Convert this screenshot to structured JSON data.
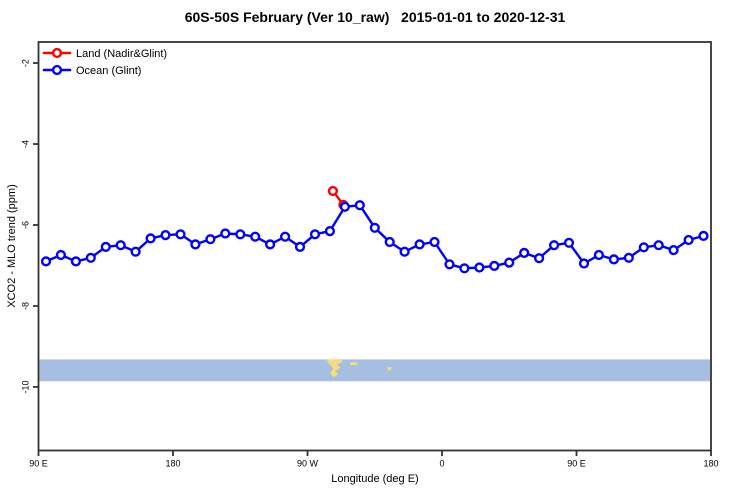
{
  "title": "60S-50S February (Ver 10_raw)   2015-01-01 to 2020-12-31",
  "legend": {
    "items": [
      {
        "label": "Land (Nadir&Glint)",
        "color": "#FF0000"
      },
      {
        "label": "Ocean (Glint)",
        "color": "#0000FF"
      }
    ]
  },
  "axes": {
    "x": {
      "label": "Longitude (deg E)",
      "ticks": [
        {
          "value": 90,
          "label": "90 E"
        },
        {
          "value": 180,
          "label": "180"
        },
        {
          "value": 270,
          "label": "90 W"
        },
        {
          "value": 360,
          "label": "0"
        },
        {
          "value": 450,
          "label": "90 E"
        },
        {
          "value": 540,
          "label": "180"
        }
      ]
    },
    "y": {
      "label": "XCO2 - MLO trend (ppm)",
      "ticks": [
        {
          "value": -2,
          "label": "-2"
        },
        {
          "value": -4,
          "label": "-4"
        },
        {
          "value": -6,
          "label": "-6"
        },
        {
          "value": -8,
          "label": "-8"
        },
        {
          "value": -10,
          "label": "-10"
        }
      ]
    }
  },
  "chart_data": {
    "type": "line",
    "title": "60S-50S February (Ver 10_raw)   2015-01-01 to 2020-12-31",
    "xlabel": "Longitude (deg E)",
    "ylabel": "XCO2 - MLO trend (ppm)",
    "xlim": [
      90,
      540
    ],
    "ylim": [
      -11.57,
      -1.48
    ],
    "grid": false,
    "legend_position": "top-left",
    "marker": "open-circle",
    "series": [
      {
        "name": "Land (Nadir&Glint)",
        "color": "#FF0000",
        "x": [
          287,
          294
        ],
        "values": [
          -5.16,
          -5.5
        ]
      },
      {
        "name": "Ocean (Glint)",
        "color": "#0000FF",
        "x": [
          95,
          105,
          115,
          125,
          135,
          145,
          155,
          165,
          175,
          185,
          195,
          205,
          215,
          225,
          235,
          245,
          255,
          265,
          275,
          285,
          295,
          305,
          315,
          325,
          335,
          345,
          355,
          365,
          375,
          385,
          395,
          405,
          415,
          425,
          435,
          445,
          455,
          465,
          475,
          485,
          495,
          505,
          515,
          525,
          535
        ],
        "values": [
          -6.9,
          -6.74,
          -6.9,
          -6.81,
          -6.54,
          -6.5,
          -6.66,
          -6.33,
          -6.25,
          -6.23,
          -6.48,
          -6.35,
          -6.21,
          -6.23,
          -6.29,
          -6.48,
          -6.29,
          -6.54,
          -6.23,
          -6.15,
          -5.55,
          -5.51,
          -6.07,
          -6.42,
          -6.66,
          -6.48,
          -6.42,
          -6.97,
          -7.07,
          -7.05,
          -7.01,
          -6.93,
          -6.69,
          -6.82,
          -6.5,
          -6.44,
          -6.95,
          -6.74,
          -6.85,
          -6.81,
          -6.55,
          -6.5,
          -6.62,
          -6.37,
          -6.27
        ]
      }
    ],
    "map_strip": {
      "description": "60S-50S latitude band map inset (ocean with land patches)",
      "ocean_color": "#A6BEDF",
      "land_color": "#F5DB7D",
      "y_top": -9.32,
      "y_bottom": -9.86,
      "land_polygons": [
        [
          [
            283.2,
            -9.3
          ],
          [
            292.6,
            -9.3
          ],
          [
            293.4,
            -9.39
          ],
          [
            289.9,
            -9.44
          ],
          [
            292.0,
            -9.53
          ],
          [
            288.6,
            -9.61
          ],
          [
            290.6,
            -9.69
          ],
          [
            287.2,
            -9.76
          ],
          [
            285.2,
            -9.66
          ],
          [
            287.2,
            -9.54
          ],
          [
            284.6,
            -9.44
          ],
          [
            283.4,
            -9.37
          ]
        ],
        [
          [
            298.6,
            -9.39
          ],
          [
            303.4,
            -9.39
          ],
          [
            303.4,
            -9.46
          ],
          [
            298.6,
            -9.46
          ]
        ],
        [
          [
            323.4,
            -9.51
          ],
          [
            326.1,
            -9.51
          ],
          [
            326.1,
            -9.59
          ],
          [
            323.4,
            -9.59
          ]
        ]
      ]
    }
  }
}
